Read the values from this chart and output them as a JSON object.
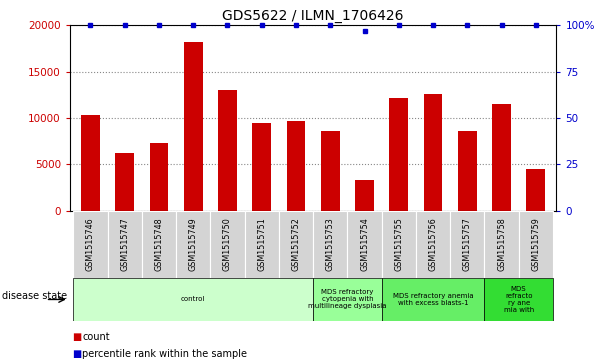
{
  "title": "GDS5622 / ILMN_1706426",
  "samples": [
    "GSM1515746",
    "GSM1515747",
    "GSM1515748",
    "GSM1515749",
    "GSM1515750",
    "GSM1515751",
    "GSM1515752",
    "GSM1515753",
    "GSM1515754",
    "GSM1515755",
    "GSM1515756",
    "GSM1515757",
    "GSM1515758",
    "GSM1515759"
  ],
  "counts": [
    10300,
    6200,
    7300,
    18200,
    13000,
    9500,
    9700,
    8600,
    3300,
    12200,
    12600,
    8600,
    11500,
    4500
  ],
  "percentile_ranks": [
    100,
    100,
    100,
    100,
    100,
    100,
    100,
    100,
    97,
    100,
    100,
    100,
    100,
    100
  ],
  "bar_color": "#cc0000",
  "dot_color": "#0000cc",
  "ylim_left": [
    0,
    20000
  ],
  "ylim_right": [
    0,
    100
  ],
  "yticks_left": [
    0,
    5000,
    10000,
    15000,
    20000
  ],
  "ytick_labels_left": [
    "0",
    "5000",
    "10000",
    "15000",
    "20000"
  ],
  "yticks_right": [
    0,
    25,
    50,
    75,
    100
  ],
  "ytick_labels_right": [
    "0",
    "25",
    "50",
    "75",
    "100%"
  ],
  "disease_groups": [
    {
      "label": "control",
      "start": 0,
      "end": 7,
      "color": "#ccffcc"
    },
    {
      "label": "MDS refractory\ncytopenia with\nmultilineage dysplasia",
      "start": 7,
      "end": 9,
      "color": "#99ff99"
    },
    {
      "label": "MDS refractory anemia\nwith excess blasts-1",
      "start": 9,
      "end": 12,
      "color": "#66ee66"
    },
    {
      "label": "MDS\nrefracto\nry ane\nmia with",
      "start": 12,
      "end": 14,
      "color": "#33dd33"
    }
  ],
  "disease_state_label": "disease state",
  "legend_count_label": "count",
  "legend_percentile_label": "percentile rank within the sample",
  "bar_color_left_tick": "#cc0000",
  "bar_color_right_tick": "#0000cc",
  "grid_style": "dotted",
  "grid_color": "#888888",
  "bar_width": 0.55,
  "cell_color": "#d4d4d4",
  "cell_edge_color": "#ffffff"
}
